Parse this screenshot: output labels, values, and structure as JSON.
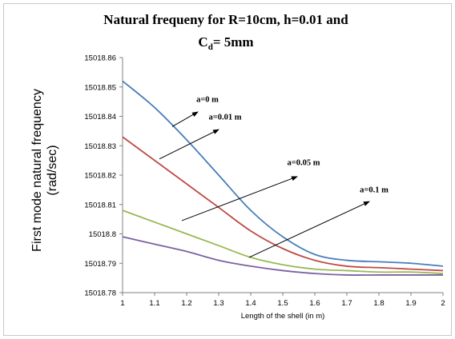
{
  "chart_data": {
    "type": "line",
    "title_line1": "Natural frequeny for R=10cm, h=0.01 and",
    "title_line2_main": "C",
    "title_line2_sub": "d",
    "title_line2_rest": "= 5mm",
    "xlabel": "Length of the shell (in m)",
    "ylabel_line1": "First mode natural frequency",
    "ylabel_line2": "(rad/sec)",
    "xlim": [
      1,
      2
    ],
    "ylim": [
      15018.78,
      15018.86
    ],
    "x_ticks": [
      "1",
      "1.1",
      "1.2",
      "1.3",
      "1.4",
      "1.5",
      "1.6",
      "1.7",
      "1.8",
      "1.9",
      "2"
    ],
    "y_ticks": [
      "15018.78",
      "15018.79",
      "15018.8",
      "15018.81",
      "15018.82",
      "15018.83",
      "15018.84",
      "15018.85",
      "15018.86"
    ],
    "grid": false,
    "x": [
      1.0,
      1.1,
      1.2,
      1.3,
      1.4,
      1.5,
      1.6,
      1.7,
      1.8,
      1.9,
      2.0
    ],
    "series": [
      {
        "color": "#4a7ebb",
        "values": [
          15018.852,
          15018.843,
          15018.832,
          15018.82,
          15018.808,
          15018.799,
          15018.793,
          15018.791,
          15018.7905,
          15018.79,
          15018.789
        ]
      },
      {
        "color": "#be4b48",
        "values": [
          15018.833,
          15018.825,
          15018.817,
          15018.809,
          15018.801,
          15018.795,
          15018.791,
          15018.789,
          15018.7885,
          15018.788,
          15018.7875
        ]
      },
      {
        "color": "#98b954",
        "values": [
          15018.808,
          15018.804,
          15018.8,
          15018.796,
          15018.792,
          15018.7895,
          15018.788,
          15018.7875,
          15018.787,
          15018.787,
          15018.7865
        ]
      },
      {
        "color": "#7d60a0",
        "values": [
          15018.799,
          15018.7965,
          15018.794,
          15018.791,
          15018.789,
          15018.7875,
          15018.7865,
          15018.786,
          15018.786,
          15018.786,
          15018.786
        ]
      }
    ],
    "annotations": [
      {
        "label": "a=0 m",
        "text_x": 1.265,
        "text_y": 15018.8449,
        "arrow_from": [
          1.155,
          15018.8365
        ],
        "arrow_to": [
          1.235,
          15018.8415
        ]
      },
      {
        "label": "a=0.01 m",
        "text_x": 1.32,
        "text_y": 15018.8389,
        "arrow_from": [
          1.115,
          15018.8255
        ],
        "arrow_to": [
          1.3,
          15018.8355
        ]
      },
      {
        "label": "a=0.05 m",
        "text_x": 1.565,
        "text_y": 15018.8234,
        "arrow_from": [
          1.185,
          15018.8045
        ],
        "arrow_to": [
          1.545,
          15018.8195
        ]
      },
      {
        "label": "a=0.1 m",
        "text_x": 1.785,
        "text_y": 15018.8142,
        "arrow_from": [
          1.395,
          15018.792
        ],
        "arrow_to": [
          1.77,
          15018.811
        ]
      }
    ]
  }
}
